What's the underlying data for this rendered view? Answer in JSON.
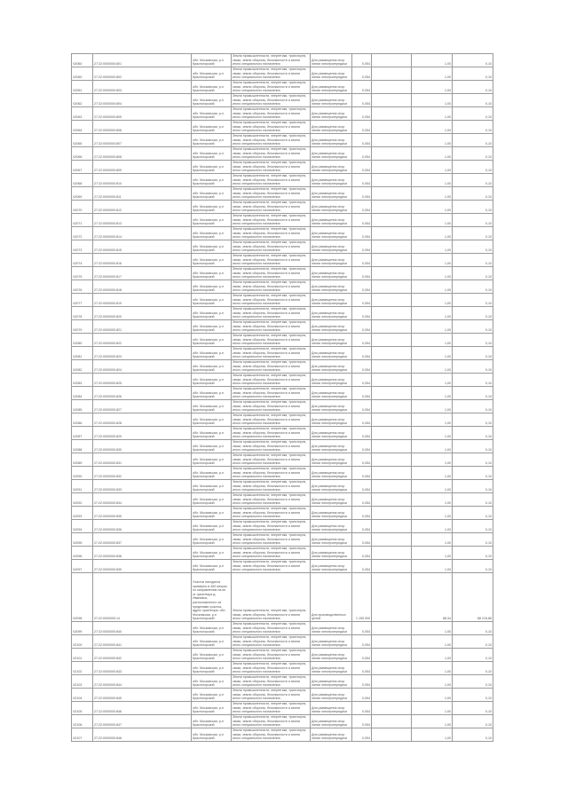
{
  "rows": [
    [
      "Ч2060",
      "27:22:0000000:801",
      "обл. Московская, р-н Красногорский",
      "Земли промышленности, энергетики, транспорта, связи, земли обороны, безопасности и земли иного специального назначения",
      "Для размещения опор линии электропередачи",
      "0,054",
      "",
      "1,00",
      "0,10"
    ],
    [
      "Ч2060",
      "27:22:0000000:802",
      "обл. Московская, р-н Красногорский",
      "Земли промышленности, энергетики, транспорта, связи, земли обороны, безопасности и земли иного специального назначения",
      "Для размещения опор линии электропередачи",
      "0,054",
      "",
      "1,00",
      "0,10"
    ],
    [
      "Ч2061",
      "27:22:0000000:803",
      "обл. Московская, р-н Красногорский",
      "Земли промышленности, энергетики, транспорта, связи, земли обороны, безопасности и земли иного специального назначения",
      "Для размещения опор линии электропередачи",
      "0,054",
      "",
      "1,00",
      "0,10"
    ],
    [
      "Ч2062",
      "27:22:0000000:804",
      "обл. Московская, р-н Красногорский",
      "Земли промышленности, энергетики, транспорта, связи, земли обороны, безопасности и земли иного специального назначения",
      "Для размещения опор линии электропередачи",
      "0,054",
      "",
      "1,00",
      "0,10"
    ],
    [
      "Ч2063",
      "27:22:0000000:805",
      "обл. Московская, р-н Красногорский",
      "Земли промышленности, энергетики, транспорта, связи, земли обороны, безопасности и земли иного специального назначения",
      "Для размещения опор линии электропередачи",
      "0,054",
      "",
      "1,00",
      "0,10"
    ],
    [
      "Ч2064",
      "27:22:0000000:806",
      "обл. Московская, р-н Красногорский",
      "Земли промышленности, энергетики, транспорта, связи, земли обороны, безопасности и земли иного специального назначения",
      "Для размещения опор линии электропередачи",
      "0,054",
      "",
      "1,00",
      "0,10"
    ],
    [
      "Ч2065",
      "27:22:0000000:807",
      "обл. Московская, р-н Красногорский",
      "Земли промышленности, энергетики, транспорта, связи, земли обороны, безопасности и земли иного специального назначения",
      "Для размещения опор линии электропередачи",
      "0,054",
      "",
      "1,00",
      "0,10"
    ],
    [
      "Ч2066",
      "27:22:0000000:808",
      "обл. Московская, р-н Красногорский",
      "Земли промышленности, энергетики, транспорта, связи, земли обороны, безопасности и земли иного специального назначения",
      "Для размещения опор линии электропередачи",
      "0,054",
      "",
      "1,00",
      "0,10"
    ],
    [
      "Ч2067",
      "27:22:0000000:809",
      "обл. Московская, р-н Красногорский",
      "Земли промышленности, энергетики, транспорта, связи, земли обороны, безопасности и земли иного специального назначения",
      "Для размещения опор линии электропередачи",
      "0,054",
      "",
      "1,00",
      "0,10"
    ],
    [
      "Ч2068",
      "27:22:0000000:810",
      "обл. Московская, р-н Красногорский",
      "Земли промышленности, энергетики, транспорта, связи, земли обороны, безопасности и земли иного специального назначения",
      "Для размещения опор линии электропередачи",
      "0,054",
      "",
      "1,00",
      "0,10"
    ],
    [
      "Ч2069",
      "27:22:0000000:811",
      "обл. Московская, р-н Красногорский",
      "Земли промышленности, энергетики, транспорта, связи, земли обороны, безопасности и земли иного специального назначения",
      "Для размещения опор линии электропередачи",
      "0,054",
      "",
      "1,00",
      "0,10"
    ],
    [
      "Ч2070",
      "27:22:0000000:812",
      "обл. Московская, р-н Красногорский",
      "Земли промышленности, энергетики, транспорта, связи, земли обороны, безопасности и земли иного специального назначения",
      "Для размещения опор линии электропередачи",
      "0,054",
      "",
      "1,00",
      "0,10"
    ],
    [
      "Ч2071",
      "27:22:0000000:813",
      "обл. Московская, р-н Красногорский",
      "Земли промышленности, энергетики, транспорта, связи, земли обороны, безопасности и земли иного специального назначения",
      "Для размещения опор линии электропередачи",
      "0,054",
      "",
      "1,00",
      "0,10"
    ],
    [
      "Ч2072",
      "27:22:0000000:814",
      "обл. Московская, р-н Красногорский",
      "Земли промышленности, энергетики, транспорта, связи, земли обороны, безопасности и земли иного специального назначения",
      "Для размещения опор линии электропередачи",
      "0,054",
      "",
      "1,00",
      "0,10"
    ],
    [
      "Ч2073",
      "27:22:0000000:815",
      "обл. Московская, р-н Красногорский",
      "Земли промышленности, энергетики, транспорта, связи, земли обороны, безопасности и земли иного специального назначения",
      "Для размещения опор линии электропередачи",
      "0,054",
      "",
      "1,00",
      "0,10"
    ],
    [
      "Ч2074",
      "27:22:0000000:816",
      "обл. Московская, р-н Красногорский",
      "Земли промышленности, энергетики, транспорта, связи, земли обороны, безопасности и земли иного специального назначения",
      "Для размещения опор линии электропередачи",
      "0,054",
      "",
      "1,00",
      "0,10"
    ],
    [
      "Ч2075",
      "27:22:0000000:817",
      "обл. Московская, р-н Красногорский",
      "Земли промышленности, энергетики, транспорта, связи, земли обороны, безопасности и земли иного специального назначения",
      "Для размещения опор линии электропередачи",
      "0,054",
      "",
      "1,00",
      "0,10"
    ],
    [
      "Ч2076",
      "27:22:0000000:818",
      "обл. Московская, р-н Красногорский",
      "Земли промышленности, энергетики, транспорта, связи, земли обороны, безопасности и земли иного специального назначения",
      "Для размещения опор линии электропередачи",
      "0,054",
      "",
      "1,00",
      "0,10"
    ],
    [
      "Ч2077",
      "27:22:0000000:819",
      "обл. Московская, р-н Красногорский",
      "Земли промышленности, энергетики, транспорта, связи, земли обороны, безопасности и земли иного специального назначения",
      "Для размещения опор линии электропередачи",
      "0,054",
      "",
      "1,00",
      "0,10"
    ],
    [
      "Ч2078",
      "27:22:0000000:820",
      "обл. Московская, р-н Красногорский",
      "Земли промышленности, энергетики, транспорта, связи, земли обороны, безопасности и земли иного специального назначения",
      "Для размещения опор линии электропередачи",
      "0,054",
      "",
      "1,00",
      "0,10"
    ],
    [
      "Ч2079",
      "27:22:0000000:821",
      "обл. Московская, р-н Красногорский",
      "Земли промышленности, энергетики, транспорта, связи, земли обороны, безопасности и земли иного специального назначения",
      "Для размещения опор линии электропередачи",
      "0,054",
      "",
      "1,00",
      "0,10"
    ],
    [
      "Ч2080",
      "27:22:0000000:822",
      "обл. Московская, р-н Красногорский",
      "Земли промышленности, энергетики, транспорта, связи, земли обороны, безопасности и земли иного специального назначения",
      "Для размещения опор линии электропередачи",
      "0,054",
      "",
      "1,00",
      "0,10"
    ],
    [
      "Ч2081",
      "27:22:0000000:823",
      "обл. Московская, р-н Красногорский",
      "Земли промышленности, энергетики, транспорта, связи, земли обороны, безопасности и земли иного специального назначения",
      "Для размещения опор линии электропередачи",
      "0,054",
      "",
      "1,00",
      "0,10"
    ],
    [
      "Ч2082",
      "27:22:0000000:824",
      "обл. Московская, р-н Красногорский",
      "Земли промышленности, энергетики, транспорта, связи, земли обороны, безопасности и земли иного специального назначения",
      "Для размещения опор линии электропередачи",
      "0,054",
      "",
      "1,00",
      "0,10"
    ],
    [
      "Ч2083",
      "27:22:0000000:825",
      "обл. Московская, р-н Красногорский",
      "Земли промышленности, энергетики, транспорта, связи, земли обороны, безопасности и земли иного специального назначения",
      "Для размещения опор линии электропередачи",
      "0,054",
      "",
      "1,00",
      "0,10"
    ],
    [
      "Ч2084",
      "27:22:0000000:826",
      "обл. Московская, р-н Красногорский",
      "Земли промышленности, энергетики, транспорта, связи, земли обороны, безопасности и земли иного специального назначения",
      "Для размещения опор линии электропередачи",
      "0,054",
      "",
      "1,00",
      "0,10"
    ],
    [
      "Ч2085",
      "27:22:0000000:827",
      "обл. Московская, р-н Красногорский",
      "Земли промышленности, энергетики, транспорта, связи, земли обороны, безопасности и земли иного специального назначения",
      "Для размещения опор линии электропередачи",
      "0,054",
      "",
      "1,00",
      "0,10"
    ],
    [
      "Ч2086",
      "27:22:0000000:828",
      "обл. Московская, р-н Красногорский",
      "Земли промышленности, энергетики, транспорта, связи, земли обороны, безопасности и земли иного специального назначения",
      "Для размещения опор линии электропередачи",
      "0,054",
      "",
      "1,00",
      "0,10"
    ],
    [
      "Ч2087",
      "27:22:0000000:829",
      "обл. Московская, р-н Красногорский",
      "Земли промышленности, энергетики, транспорта, связи, земли обороны, безопасности и земли иного специального назначения",
      "Для размещения опор линии электропередачи",
      "0,054",
      "",
      "1,00",
      "0,10"
    ],
    [
      "Ч2088",
      "27:22:0000000:830",
      "обл. Московская, р-н Красногорский",
      "Земли промышленности, энергетики, транспорта, связи, земли обороны, безопасности и земли иного специального назначения",
      "Для размещения опор линии электропередачи",
      "0,054",
      "",
      "1,00",
      "0,10"
    ],
    [
      "Ч2089",
      "27:22:0000000:831",
      "обл. Московская, р-н Красногорский",
      "Земли промышленности, энергетики, транспорта, связи, земли обороны, безопасности и земли иного специального назначения",
      "Для размещения опор линии электропередачи",
      "0,054",
      "",
      "1,00",
      "0,10"
    ],
    [
      "Ч2090",
      "27:22:0000000:832",
      "обл. Московская, р-н Красногорский",
      "Земли промышленности, энергетики, транспорта, связи, земли обороны, безопасности и земли иного специального назначения",
      "Для размещения опор линии электропередачи",
      "0,054",
      "",
      "1,00",
      "0,10"
    ],
    [
      "Ч2091",
      "27:22:0000000:833",
      "обл. Московская, р-н Красногорский",
      "Земли промышленности, энергетики, транспорта, связи, земли обороны, безопасности и земли иного специального назначения",
      "Для размещения опор линии электропередачи",
      "0,054",
      "",
      "1,00",
      "0,10"
    ],
    [
      "Ч2092",
      "27:22:0000000:834",
      "обл. Московская, р-н Красногорский",
      "Земли промышленности, энергетики, транспорта, связи, земли обороны, безопасности и земли иного специального назначения",
      "Для размещения опор линии электропередачи",
      "0,054",
      "",
      "1,00",
      "0,10"
    ],
    [
      "Ч2093",
      "27:22:0000000:835",
      "обл. Московская, р-н Красногорский",
      "Земли промышленности, энергетики, транспорта, связи, земли обороны, безопасности и земли иного специального назначения",
      "Для размещения опор линии электропередачи",
      "0,054",
      "",
      "1,00",
      "0,10"
    ],
    [
      "Ч2094",
      "27:22:0000000:836",
      "обл. Московская, р-н Красногорский",
      "Земли промышленности, энергетики, транспорта, связи, земли обороны, безопасности и земли иного специального назначения",
      "Для размещения опор линии электропередачи",
      "0,054",
      "",
      "1,00",
      "0,10"
    ],
    [
      "Ч2095",
      "27:22:0000000:837",
      "обл. Московская, р-н Красногорский",
      "Земли промышленности, энергетики, транспорта, связи, земли обороны, безопасности и земли иного специального назначения",
      "Для размещения опор линии электропередачи",
      "0,054",
      "",
      "1,00",
      "0,10"
    ],
    [
      "Ч2096",
      "27:22:0000000:838",
      "обл. Московская, р-н Красногорский",
      "Земли промышленности, энергетики, транспорта, связи, земли обороны, безопасности и земли иного специального назначения",
      "Для размещения опор линии электропередачи",
      "0,054",
      "",
      "1,00",
      "0,10"
    ],
    [
      "Ч2097",
      "27:22:0000000:839",
      "обл. Московская, р-н Красногорский",
      "Земли промышленности, энергетики, транспорта, связи, земли обороны, безопасности и земли иного специального назначения",
      "Для размещения опор линии электропередачи",
      "0,054",
      "",
      "1,00",
      "0,10"
    ],
    [
      "Ч2098",
      "27:22:0000000:14",
      "Участок находится примерно в 450 метрах по направлению на юг от ориентира д. Ивановка, расположенного за пределами участка, адрес ориентира: обл. Московская, р-н Красногорский",
      "Земли промышленности, энергетики, транспорта, связи, земли обороны, безопасности и земли иного специального назначения",
      "Для производственных целей",
      "1 155 000",
      "",
      "88,34",
      "88 215,88"
    ],
    [
      "Ч2099",
      "27:22:0000000:840",
      "обл. Московская, р-н Красногорский",
      "Земли промышленности, энергетики, транспорта, связи, земли обороны, безопасности и земли иного специального назначения",
      "Для размещения опор линии электропередачи",
      "0,054",
      "",
      "1,00",
      "0,10"
    ],
    [
      "Ч2100",
      "27:22:0000000:841",
      "обл. Московская, р-н Красногорский",
      "Земли промышленности, энергетики, транспорта, связи, земли обороны, безопасности и земли иного специального назначения",
      "Для размещения опор линии электропередачи",
      "0,054",
      "",
      "1,00",
      "0,10"
    ],
    [
      "Ч2101",
      "27:22:0000000:842",
      "обл. Московская, р-н Красногорский",
      "Земли промышленности, энергетики, транспорта, связи, земли обороны, безопасности и земли иного специального назначения",
      "Для размещения опор линии электропередачи",
      "0,054",
      "",
      "1,00",
      "0,10"
    ],
    [
      "Ч2102",
      "27:22:0000000:843",
      "обл. Московская, р-н Красногорский",
      "Земли промышленности, энергетики, транспорта, связи, земли обороны, безопасности и земли иного специального назначения",
      "Для размещения опор линии электропередачи",
      "0,054",
      "",
      "1,00",
      "0,10"
    ],
    [
      "Ч2103",
      "27:22:0000000:844",
      "обл. Московская, р-н Красногорский",
      "Земли промышленности, энергетики, транспорта, связи, земли обороны, безопасности и земли иного специального назначения",
      "Для размещения опор линии электропередачи",
      "0,054",
      "",
      "1,00",
      "0,10"
    ],
    [
      "Ч2104",
      "27:22:0000000:845",
      "обл. Московская, р-н Красногорский",
      "Земли промышленности, энергетики, транспорта, связи, земли обороны, безопасности и земли иного специального назначения",
      "Для размещения опор линии электропередачи",
      "0,054",
      "",
      "1,00",
      "0,10"
    ],
    [
      "Ч2105",
      "27:22:0000000:846",
      "обл. Московская, р-н Красногорский",
      "Земли промышленности, энергетики, транспорта, связи, земли обороны, безопасности и земли иного специального назначения",
      "Для размещения опор линии электропередачи",
      "0,054",
      "",
      "1,00",
      "0,10"
    ],
    [
      "Ч2106",
      "27:22:0000000:847",
      "обл. Московская, р-н Красногорский",
      "Земли промышленности, энергетики, транспорта, связи, земли обороны, безопасности и земли иного специального назначения",
      "Для размещения опор линии электропередачи",
      "0,054",
      "",
      "1,00",
      "0,10"
    ],
    [
      "Ч2107",
      "27:22:0000000:848",
      "обл. Московская, р-н Красногорский",
      "Земли промышленности, энергетики, транспорта, связи, земли обороны, безопасности и земли иного специального назначения",
      "Для размещения опор линии электропередачи",
      "0,054",
      "",
      "1,00",
      "0,10"
    ]
  ]
}
